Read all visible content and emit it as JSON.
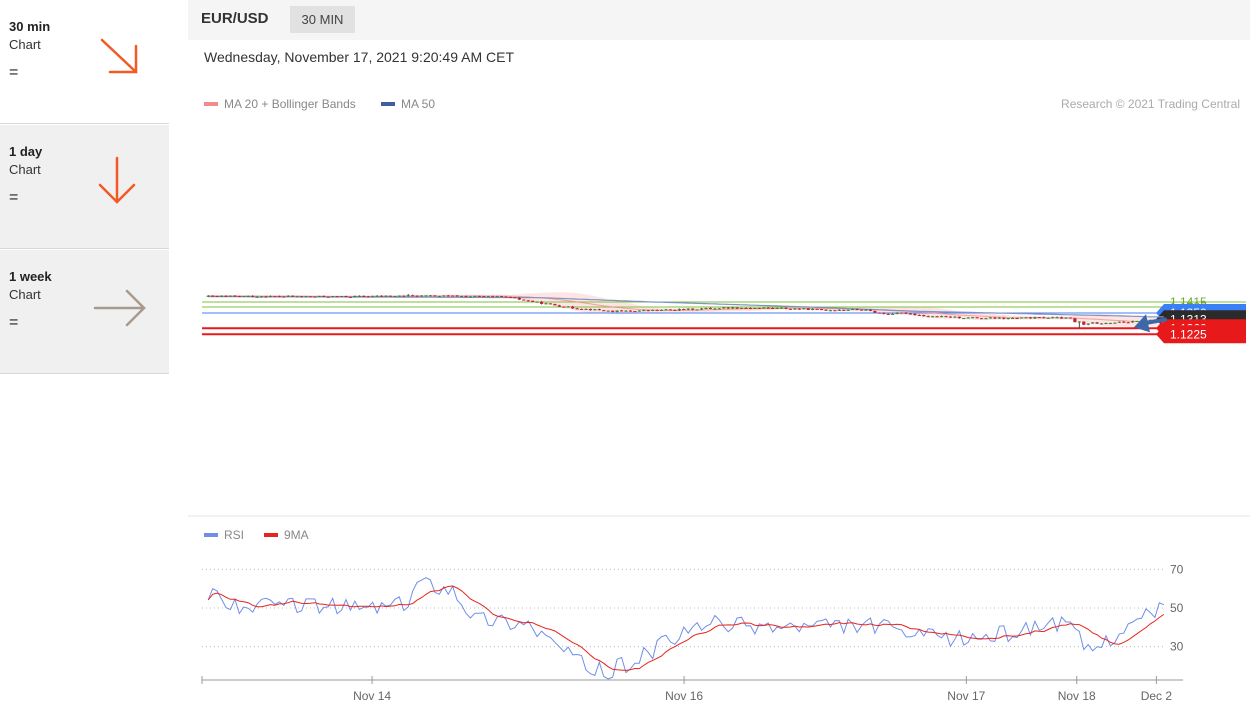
{
  "sidebar": {
    "items": [
      {
        "period": "30 min",
        "type": "Chart",
        "outlook": "=",
        "arrow": "down-right",
        "color": "#f25a24"
      },
      {
        "period": "1 day",
        "type": "Chart",
        "outlook": "=",
        "arrow": "down",
        "color": "#f25a24"
      },
      {
        "period": "1 week",
        "type": "Chart",
        "outlook": "=",
        "arrow": "right",
        "color": "#a59a8c"
      }
    ]
  },
  "header": {
    "pair": "EUR/USD",
    "timeframe": "30 MIN",
    "datetime": "Wednesday, November 17, 2021 9:20:49 AM CET",
    "copyright": "Research © 2021 Trading Central"
  },
  "legend": {
    "ma20": "MA 20 + Bollinger Bands",
    "ma50": "MA 50",
    "rsi": "RSI",
    "ma9": "9MA"
  },
  "colors": {
    "ma20": "#f28c8c",
    "ma50": "#3d5f9e",
    "rsi": "#6f8ee8",
    "ma9": "#e8231b",
    "bull": "#2f8a2f",
    "bear": "#c8232c",
    "pivot": "#4a7ff0",
    "support": "#e8191b",
    "resistance": "#7fbf3f",
    "current": "#222222",
    "arrow": "#3c67a8"
  },
  "levels": [
    {
      "value": 1.1415,
      "label": "1.1415",
      "kind": "resistance"
    },
    {
      "value": 1.1385,
      "label": "1.1385",
      "kind": "resistance"
    },
    {
      "value": 1.135,
      "label": "1.1350",
      "kind": "pivot"
    },
    {
      "value": 1.1313,
      "label": "1.1313",
      "kind": "current"
    },
    {
      "value": 1.126,
      "label": "1.1260",
      "kind": "support"
    },
    {
      "value": 1.1225,
      "label": "1.1225",
      "kind": "support"
    }
  ],
  "x_axis": {
    "labels": [
      {
        "text": "Nov 14",
        "pos": 0.173
      },
      {
        "text": "Nov 16",
        "pos": 0.498
      },
      {
        "text": "Nov 17",
        "pos": 0.792
      },
      {
        "text": "Nov 18",
        "pos": 0.907
      },
      {
        "text": "Dec 2",
        "pos": 0.99
      }
    ]
  },
  "rsi_axis": {
    "labels": [
      "70",
      "50",
      "30"
    ]
  },
  "chart_data": {
    "type": "candlestick",
    "price_key_points": [
      [
        0,
        1.1448
      ],
      [
        12,
        1.1448
      ],
      [
        30,
        1.1446
      ],
      [
        47,
        1.1451
      ],
      [
        58,
        1.1449
      ],
      [
        68,
        1.1444
      ],
      [
        75,
        1.1412
      ],
      [
        83,
        1.138
      ],
      [
        92,
        1.136
      ],
      [
        105,
        1.1368
      ],
      [
        118,
        1.1381
      ],
      [
        130,
        1.1378
      ],
      [
        140,
        1.1368
      ],
      [
        148,
        1.1371
      ],
      [
        153,
        1.1345
      ],
      [
        158,
        1.135
      ],
      [
        163,
        1.133
      ],
      [
        172,
        1.1322
      ],
      [
        180,
        1.1318
      ],
      [
        190,
        1.1323
      ],
      [
        195,
        1.1318
      ],
      [
        197,
        1.127
      ],
      [
        199,
        1.129
      ],
      [
        209,
        1.1298
      ],
      [
        215,
        1.1314
      ]
    ],
    "ma50_key_points": [
      [
        0,
        1.1446
      ],
      [
        40,
        1.1444
      ],
      [
        75,
        1.144
      ],
      [
        100,
        1.1415
      ],
      [
        130,
        1.139
      ],
      [
        160,
        1.136
      ],
      [
        185,
        1.1345
      ],
      [
        205,
        1.1333
      ],
      [
        213,
        1.1327
      ]
    ],
    "rsi_key_points": [
      [
        0,
        58
      ],
      [
        8,
        50
      ],
      [
        20,
        52
      ],
      [
        35,
        50
      ],
      [
        45,
        52
      ],
      [
        47,
        64
      ],
      [
        55,
        60
      ],
      [
        60,
        45
      ],
      [
        72,
        42
      ],
      [
        80,
        28
      ],
      [
        86,
        18
      ],
      [
        90,
        17
      ],
      [
        96,
        23
      ],
      [
        103,
        32
      ],
      [
        112,
        42
      ],
      [
        130,
        40
      ],
      [
        150,
        41
      ],
      [
        160,
        35
      ],
      [
        170,
        34
      ],
      [
        180,
        37
      ],
      [
        190,
        43
      ],
      [
        195,
        38
      ],
      [
        198,
        27
      ],
      [
        205,
        38
      ],
      [
        212,
        47
      ],
      [
        215,
        52
      ]
    ]
  }
}
